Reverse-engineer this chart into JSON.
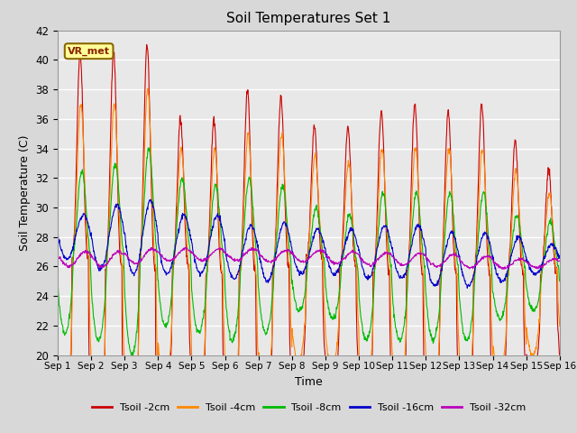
{
  "title": "Soil Temperatures Set 1",
  "xlabel": "Time",
  "ylabel": "Soil Temperature (C)",
  "ylim": [
    20,
    42
  ],
  "yticks": [
    20,
    22,
    24,
    26,
    28,
    30,
    32,
    34,
    36,
    38,
    40,
    42
  ],
  "xtick_labels": [
    "Sep 1",
    "Sep 2",
    "Sep 3",
    "Sep 4",
    "Sep 5",
    "Sep 6",
    "Sep 7",
    "Sep 8",
    "Sep 9",
    "Sep 10",
    "Sep 11",
    "Sep 12",
    "Sep 13",
    "Sep 14",
    "Sep 15",
    "Sep 16"
  ],
  "colors": {
    "Tsoil -2cm": "#cc0000",
    "Tsoil -4cm": "#ff8800",
    "Tsoil -8cm": "#00bb00",
    "Tsoil -16cm": "#0000cc",
    "Tsoil -32cm": "#bb00bb"
  },
  "series_labels": [
    "Tsoil -2cm",
    "Tsoil -4cm",
    "Tsoil -8cm",
    "Tsoil -16cm",
    "Tsoil -32cm"
  ],
  "bg_color": "#d8d8d8",
  "plot_bg": "#e8e8e8",
  "annotation_text": "VR_met",
  "annotation_bg": "#ffff99",
  "annotation_border": "#886600",
  "figwidth": 6.4,
  "figheight": 4.8,
  "dpi": 100
}
